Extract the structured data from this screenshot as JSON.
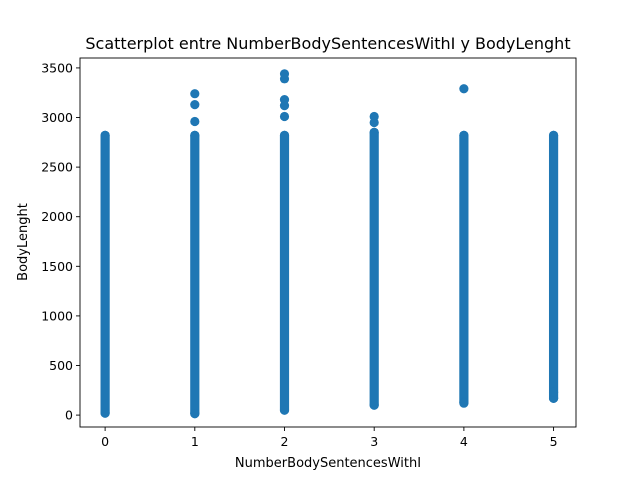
{
  "chart_data": {
    "type": "scatter",
    "title": "Scatterplot entre NumberBodySentencesWithI y BodyLenght",
    "xlabel": "NumberBodySentencesWithI",
    "ylabel": "BodyLenght",
    "xlim": [
      -0.28,
      5.25
    ],
    "ylim": [
      -120,
      3600
    ],
    "xticks": [
      0,
      1,
      2,
      3,
      4,
      5
    ],
    "xtick_labels": [
      "0",
      "1",
      "2",
      "3",
      "4",
      "5"
    ],
    "yticks": [
      0,
      500,
      1000,
      1500,
      2000,
      2500,
      3000,
      3500
    ],
    "ytick_labels": [
      "0",
      "500",
      "1000",
      "1500",
      "2000",
      "2500",
      "3000",
      "3500"
    ],
    "grid": false,
    "marker_color": "#1f77b4",
    "columns": [
      {
        "x": 0,
        "y_min": 20,
        "y_max": 2820
      },
      {
        "x": 1,
        "y_min": 15,
        "y_max": 2820
      },
      {
        "x": 2,
        "y_min": 50,
        "y_max": 2820
      },
      {
        "x": 3,
        "y_min": 100,
        "y_max": 2850
      },
      {
        "x": 4,
        "y_min": 130,
        "y_max": 2820
      },
      {
        "x": 5,
        "y_min": 170,
        "y_max": 2820
      }
    ],
    "outliers": [
      {
        "x": 1,
        "y": 2960
      },
      {
        "x": 1,
        "y": 3130
      },
      {
        "x": 1,
        "y": 3240
      },
      {
        "x": 2,
        "y": 3010
      },
      {
        "x": 2,
        "y": 3120
      },
      {
        "x": 2,
        "y": 3180
      },
      {
        "x": 2,
        "y": 3390
      },
      {
        "x": 2,
        "y": 3440
      },
      {
        "x": 3,
        "y": 2950
      },
      {
        "x": 3,
        "y": 3010
      },
      {
        "x": 4,
        "y": 3290
      },
      {
        "x": 4,
        "y": 120
      },
      {
        "x": 5,
        "y": 170
      },
      {
        "x": 5,
        "y": 230
      }
    ]
  }
}
